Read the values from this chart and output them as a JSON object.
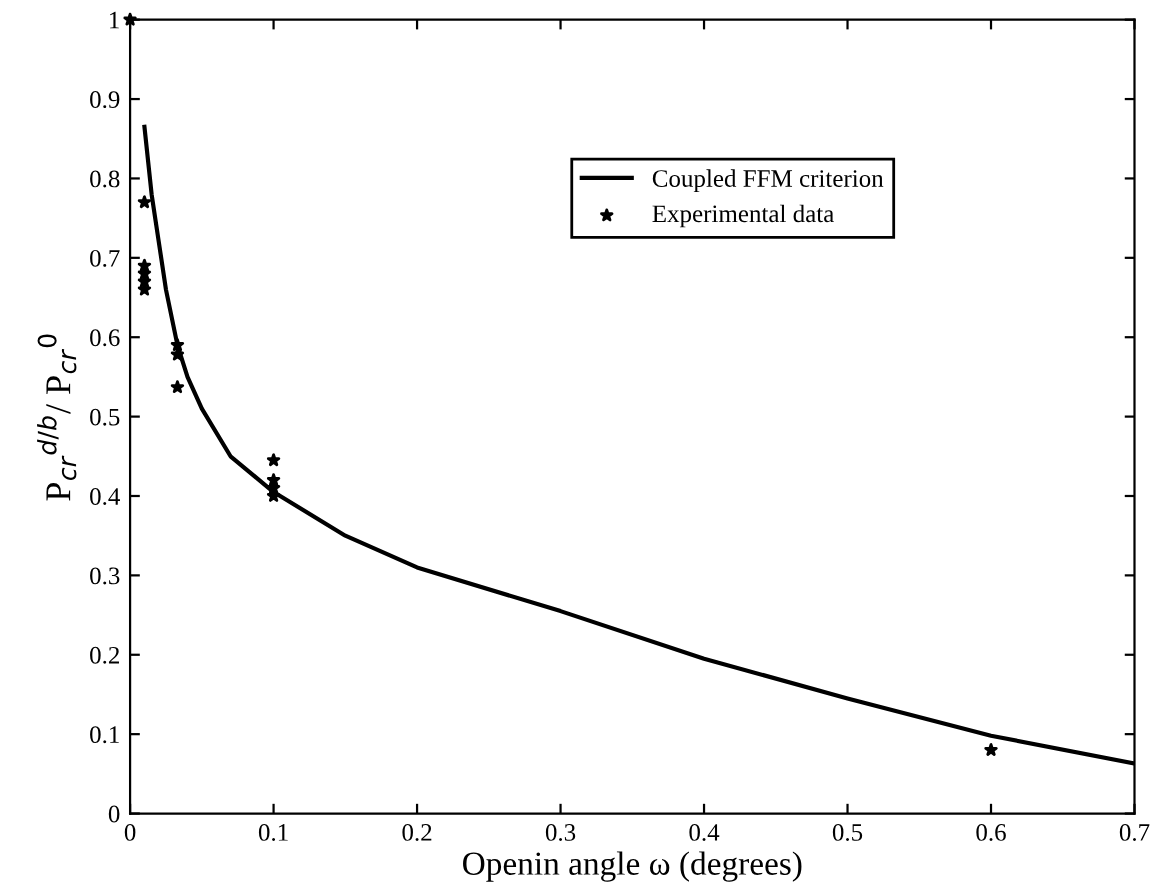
{
  "chart_data": {
    "type": "line",
    "xlabel": "Openin angle ω (degrees)",
    "ylabel": "P$_{cr}$$^{d/b}$/ P$_{cr}$$^{0}$",
    "xlim": [
      0,
      0.7
    ],
    "xticks": [
      0,
      0.1,
      0.2,
      0.3,
      0.4,
      0.5,
      0.6,
      0.7
    ],
    "ylim": [
      0,
      1
    ],
    "yticks": [
      0,
      0.1,
      0.2,
      0.3,
      0.4,
      0.5,
      0.6,
      0.7,
      0.8,
      0.9,
      1
    ],
    "grid": false,
    "legend": "top",
    "series": [
      {
        "name": "Coupled FFM criterion",
        "color": "#000000",
        "marker": "none",
        "line_style": "solid",
        "x": [
          0.01,
          0.015,
          0.02,
          0.025,
          0.033,
          0.04,
          0.05,
          0.07,
          0.1,
          0.15,
          0.2,
          0.3,
          0.4,
          0.5,
          0.6,
          0.7
        ],
        "values": [
          0.865,
          0.78,
          0.72,
          0.66,
          0.59,
          0.55,
          0.51,
          0.45,
          0.405,
          0.35,
          0.31,
          0.255,
          0.195,
          0.145,
          0.098,
          0.063
        ]
      },
      {
        "name": "Experimental data",
        "type": "scatter",
        "color": "#000000",
        "marker": "star",
        "x": [
          0,
          0.01,
          0.01,
          0.01,
          0.01,
          0.01,
          0.033,
          0.033,
          0.033,
          0.1,
          0.1,
          0.1,
          0.1,
          0.6
        ],
        "values": [
          1,
          0.77,
          0.69,
          0.68,
          0.67,
          0.66,
          0.59,
          0.578,
          0.537,
          0.445,
          0.42,
          0.41,
          0.4,
          0.08
        ]
      }
    ]
  }
}
